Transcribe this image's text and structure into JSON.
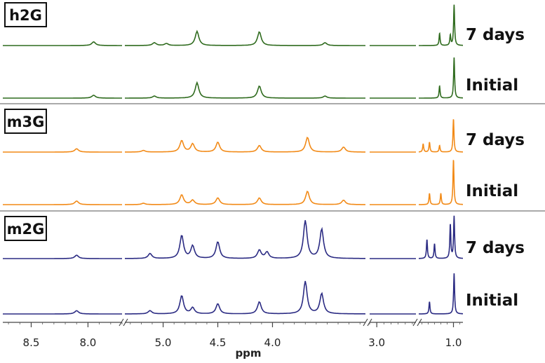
{
  "chart_data": {
    "type": "line",
    "title": "",
    "xlabel": "ppm",
    "ylabel": "",
    "x_axis": {
      "reversed": true,
      "ticks": [
        8.5,
        8.0,
        5.0,
        4.5,
        4.0,
        3.0,
        1.0
      ],
      "tick_labels": [
        "8.5",
        "8.0",
        "5.0",
        "4.5",
        "4.0",
        "3.0",
        "1.0"
      ],
      "segments": [
        [
          8.75,
          7.7
        ],
        [
          5.35,
          3.15
        ],
        [
          3.1,
          2.45
        ],
        [
          1.55,
          0.85
        ]
      ],
      "breaks": true
    },
    "grid": false,
    "legend": "none",
    "panels": [
      {
        "label": "h2G",
        "color": "#2f6b1e",
        "series": [
          {
            "name": "7 days",
            "peaks": [
              [
                7.95,
                0.09
              ],
              [
                5.08,
                0.07
              ],
              [
                4.97,
                0.05
              ],
              [
                4.69,
                0.35
              ],
              [
                4.12,
                0.34
              ],
              [
                3.52,
                0.07
              ],
              [
                1.22,
                0.3
              ],
              [
                1.05,
                0.25
              ],
              [
                0.99,
                1.0
              ]
            ]
          },
          {
            "name": "Initial",
            "peaks": [
              [
                7.95,
                0.07
              ],
              [
                5.08,
                0.05
              ],
              [
                4.69,
                0.38
              ],
              [
                4.12,
                0.3
              ],
              [
                3.52,
                0.05
              ],
              [
                1.22,
                0.3
              ],
              [
                0.99,
                1.0
              ]
            ]
          }
        ]
      },
      {
        "label": "m3G",
        "color": "#f28a17",
        "series": [
          {
            "name": "7 days",
            "peaks": [
              [
                8.1,
                0.1
              ],
              [
                5.18,
                0.05
              ],
              [
                4.83,
                0.35
              ],
              [
                4.73,
                0.25
              ],
              [
                4.5,
                0.3
              ],
              [
                4.12,
                0.2
              ],
              [
                3.68,
                0.45
              ],
              [
                3.35,
                0.15
              ],
              [
                1.48,
                0.25
              ],
              [
                1.38,
                0.3
              ],
              [
                1.22,
                0.2
              ],
              [
                1.0,
                1.0
              ]
            ]
          },
          {
            "name": "Initial",
            "peaks": [
              [
                8.1,
                0.08
              ],
              [
                5.18,
                0.03
              ],
              [
                4.83,
                0.22
              ],
              [
                4.73,
                0.1
              ],
              [
                4.5,
                0.15
              ],
              [
                4.12,
                0.15
              ],
              [
                3.68,
                0.3
              ],
              [
                3.35,
                0.1
              ],
              [
                1.38,
                0.25
              ],
              [
                1.2,
                0.25
              ],
              [
                1.0,
                1.0
              ]
            ]
          }
        ]
      },
      {
        "label": "m2G",
        "color": "#2b2b83",
        "series": [
          {
            "name": "7 days",
            "peaks": [
              [
                8.1,
                0.08
              ],
              [
                5.12,
                0.12
              ],
              [
                4.83,
                0.55
              ],
              [
                4.73,
                0.3
              ],
              [
                4.5,
                0.4
              ],
              [
                4.12,
                0.2
              ],
              [
                4.05,
                0.15
              ],
              [
                3.7,
                0.9
              ],
              [
                3.55,
                0.7
              ],
              [
                1.42,
                0.45
              ],
              [
                1.3,
                0.35
              ],
              [
                1.05,
                0.8
              ],
              [
                0.99,
                1.0
              ]
            ]
          },
          {
            "name": "Initial",
            "peaks": [
              [
                8.1,
                0.08
              ],
              [
                5.12,
                0.08
              ],
              [
                4.83,
                0.45
              ],
              [
                4.73,
                0.15
              ],
              [
                4.5,
                0.25
              ],
              [
                4.12,
                0.3
              ],
              [
                3.7,
                0.8
              ],
              [
                3.55,
                0.5
              ],
              [
                1.38,
                0.3
              ],
              [
                0.99,
                1.0
              ]
            ]
          }
        ]
      }
    ]
  }
}
